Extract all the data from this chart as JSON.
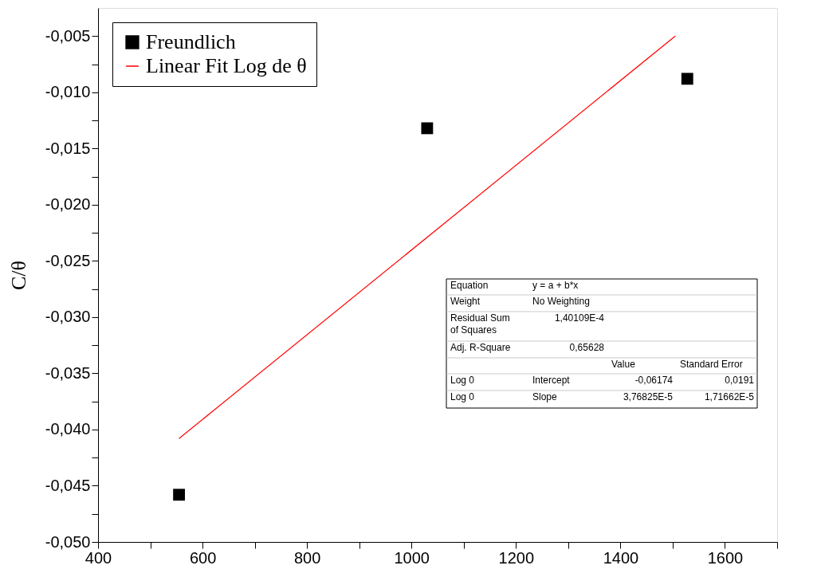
{
  "chart_data": {
    "type": "scatter",
    "ylabel": "C/θ",
    "series": [
      {
        "name": "Freundlich",
        "color": "#000000",
        "marker": "square",
        "x": [
          555,
          1030,
          1528
        ],
        "values": [
          -0.0458,
          -0.0132,
          -0.0088
        ]
      },
      {
        "name": "Linear Fit Log de θ",
        "type": "line",
        "color": "#ff0000",
        "line_style": "solid",
        "x": [
          555,
          1505
        ],
        "values": [
          -0.0408,
          -0.005
        ]
      }
    ],
    "xlim": [
      400,
      1700
    ],
    "xticks": [
      400,
      {
        "value": 500,
        "label": null
      },
      600,
      {
        "value": 700,
        "label": null
      },
      800,
      {
        "value": 900,
        "label": null
      },
      1000,
      {
        "value": 1100,
        "label": null
      },
      1200,
      {
        "value": 1300,
        "label": null
      },
      1400,
      {
        "value": 1500,
        "label": null
      },
      1600,
      {
        "value": 1700,
        "label": null
      }
    ],
    "ylim": [
      -0.05,
      -0.0025
    ],
    "yticks": [
      {
        "value": -0.05,
        "label": "-0,050"
      },
      {
        "value": -0.0475,
        "label": null
      },
      {
        "value": -0.045,
        "label": "-0,045"
      },
      {
        "value": -0.0425,
        "label": null
      },
      {
        "value": -0.04,
        "label": "-0,040"
      },
      {
        "value": -0.0375,
        "label": null
      },
      {
        "value": -0.035,
        "label": "-0,035"
      },
      {
        "value": -0.0325,
        "label": null
      },
      {
        "value": -0.03,
        "label": "-0,030"
      },
      {
        "value": -0.0275,
        "label": null
      },
      {
        "value": -0.025,
        "label": "-0,025"
      },
      {
        "value": -0.0225,
        "label": null
      },
      {
        "value": -0.02,
        "label": "-0,020"
      },
      {
        "value": -0.0175,
        "label": null
      },
      {
        "value": -0.015,
        "label": "-0,015"
      },
      {
        "value": -0.0125,
        "label": null
      },
      {
        "value": -0.01,
        "label": "-0,010"
      },
      {
        "value": -0.0075,
        "label": null
      },
      {
        "value": -0.005,
        "label": "-0,005"
      }
    ],
    "grid": false,
    "legend": "top left",
    "annotations": [
      "Equation",
      "y = a + b*x",
      "Weight",
      "No Weighting",
      "Residual Sum of Squares",
      "1,40109E-4",
      "Adj. R-Square",
      "0,65628",
      "Value",
      "Standard Error",
      "Log 0",
      "Intercept",
      "-0,06174",
      "0,0191",
      "Log 0",
      "Slope",
      "3,76825E-5",
      "1,71662E-5"
    ]
  }
}
